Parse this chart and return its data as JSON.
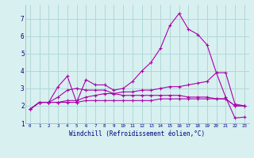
{
  "xlabel": "Windchill (Refroidissement éolien,°C)",
  "background_color": "#d8f0f0",
  "grid_color": "#b0d8d8",
  "line_color": "#aa00aa",
  "xlim": [
    -0.5,
    23.5
  ],
  "ylim": [
    1,
    7.8
  ],
  "yticks": [
    1,
    2,
    3,
    4,
    5,
    6,
    7
  ],
  "xticks": [
    0,
    1,
    2,
    3,
    4,
    5,
    6,
    7,
    8,
    9,
    10,
    11,
    12,
    13,
    14,
    15,
    16,
    17,
    18,
    19,
    20,
    21,
    22,
    23
  ],
  "xtick_labels": [
    "0",
    "1",
    "2",
    "3",
    "4",
    "5",
    "6",
    "7",
    "8",
    "9",
    "10",
    "11",
    "12",
    "13",
    "14",
    "15",
    "16",
    "17",
    "18",
    "19",
    "20",
    "21",
    "22",
    "23"
  ],
  "series": [
    [
      1.8,
      2.2,
      2.2,
      3.1,
      3.7,
      2.2,
      3.5,
      3.2,
      3.2,
      2.9,
      3.0,
      3.4,
      4.0,
      4.5,
      5.3,
      6.6,
      7.3,
      6.4,
      6.1,
      5.5,
      3.9,
      2.5,
      1.3,
      1.35
    ],
    [
      1.8,
      2.2,
      2.2,
      2.2,
      2.3,
      2.3,
      2.5,
      2.6,
      2.7,
      2.7,
      2.8,
      2.8,
      2.9,
      2.9,
      3.0,
      3.1,
      3.1,
      3.2,
      3.3,
      3.4,
      3.9,
      3.9,
      2.1,
      2.0
    ],
    [
      1.8,
      2.2,
      2.2,
      2.5,
      2.9,
      3.0,
      2.9,
      2.9,
      2.9,
      2.7,
      2.6,
      2.6,
      2.6,
      2.6,
      2.6,
      2.6,
      2.6,
      2.5,
      2.5,
      2.5,
      2.4,
      2.4,
      2.0,
      2.0
    ],
    [
      1.8,
      2.2,
      2.2,
      2.2,
      2.2,
      2.2,
      2.3,
      2.3,
      2.3,
      2.3,
      2.3,
      2.3,
      2.3,
      2.3,
      2.4,
      2.4,
      2.4,
      2.4,
      2.4,
      2.4,
      2.4,
      2.4,
      2.0,
      2.0
    ]
  ]
}
